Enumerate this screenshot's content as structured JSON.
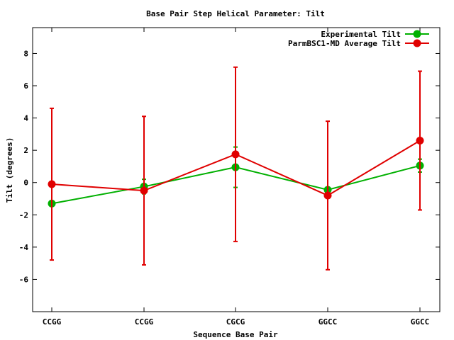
{
  "chart_data": {
    "type": "line",
    "title": "Base Pair Step Helical Parameter: Tilt",
    "xlabel": "Sequence Base Pair",
    "ylabel": "Tilt (degrees)",
    "categories": [
      "CCGG",
      "CCGG",
      "CGCG",
      "GGCC",
      "GGCC"
    ],
    "ylim": [
      -8,
      9.6
    ],
    "yticks": [
      -6,
      -4,
      -2,
      0,
      2,
      4,
      6,
      8
    ],
    "ytick_labels": [
      "-6",
      "-4",
      "-2",
      "0",
      "2",
      "4",
      "6",
      "8"
    ],
    "grid": false,
    "legend_position": "top-right",
    "series": [
      {
        "name": "Experimental Tilt",
        "color": "#00b000",
        "values": [
          -1.3,
          -0.25,
          0.95,
          -0.45,
          1.05
        ],
        "error": [
          null,
          0.45,
          1.25,
          null,
          0.4
        ]
      },
      {
        "name": "ParmBSC1-MD Average Tilt",
        "color": "#e00000",
        "values": [
          -0.1,
          -0.5,
          1.75,
          -0.8,
          2.6
        ],
        "error": [
          4.7,
          4.6,
          5.4,
          4.6,
          4.3
        ]
      }
    ]
  }
}
